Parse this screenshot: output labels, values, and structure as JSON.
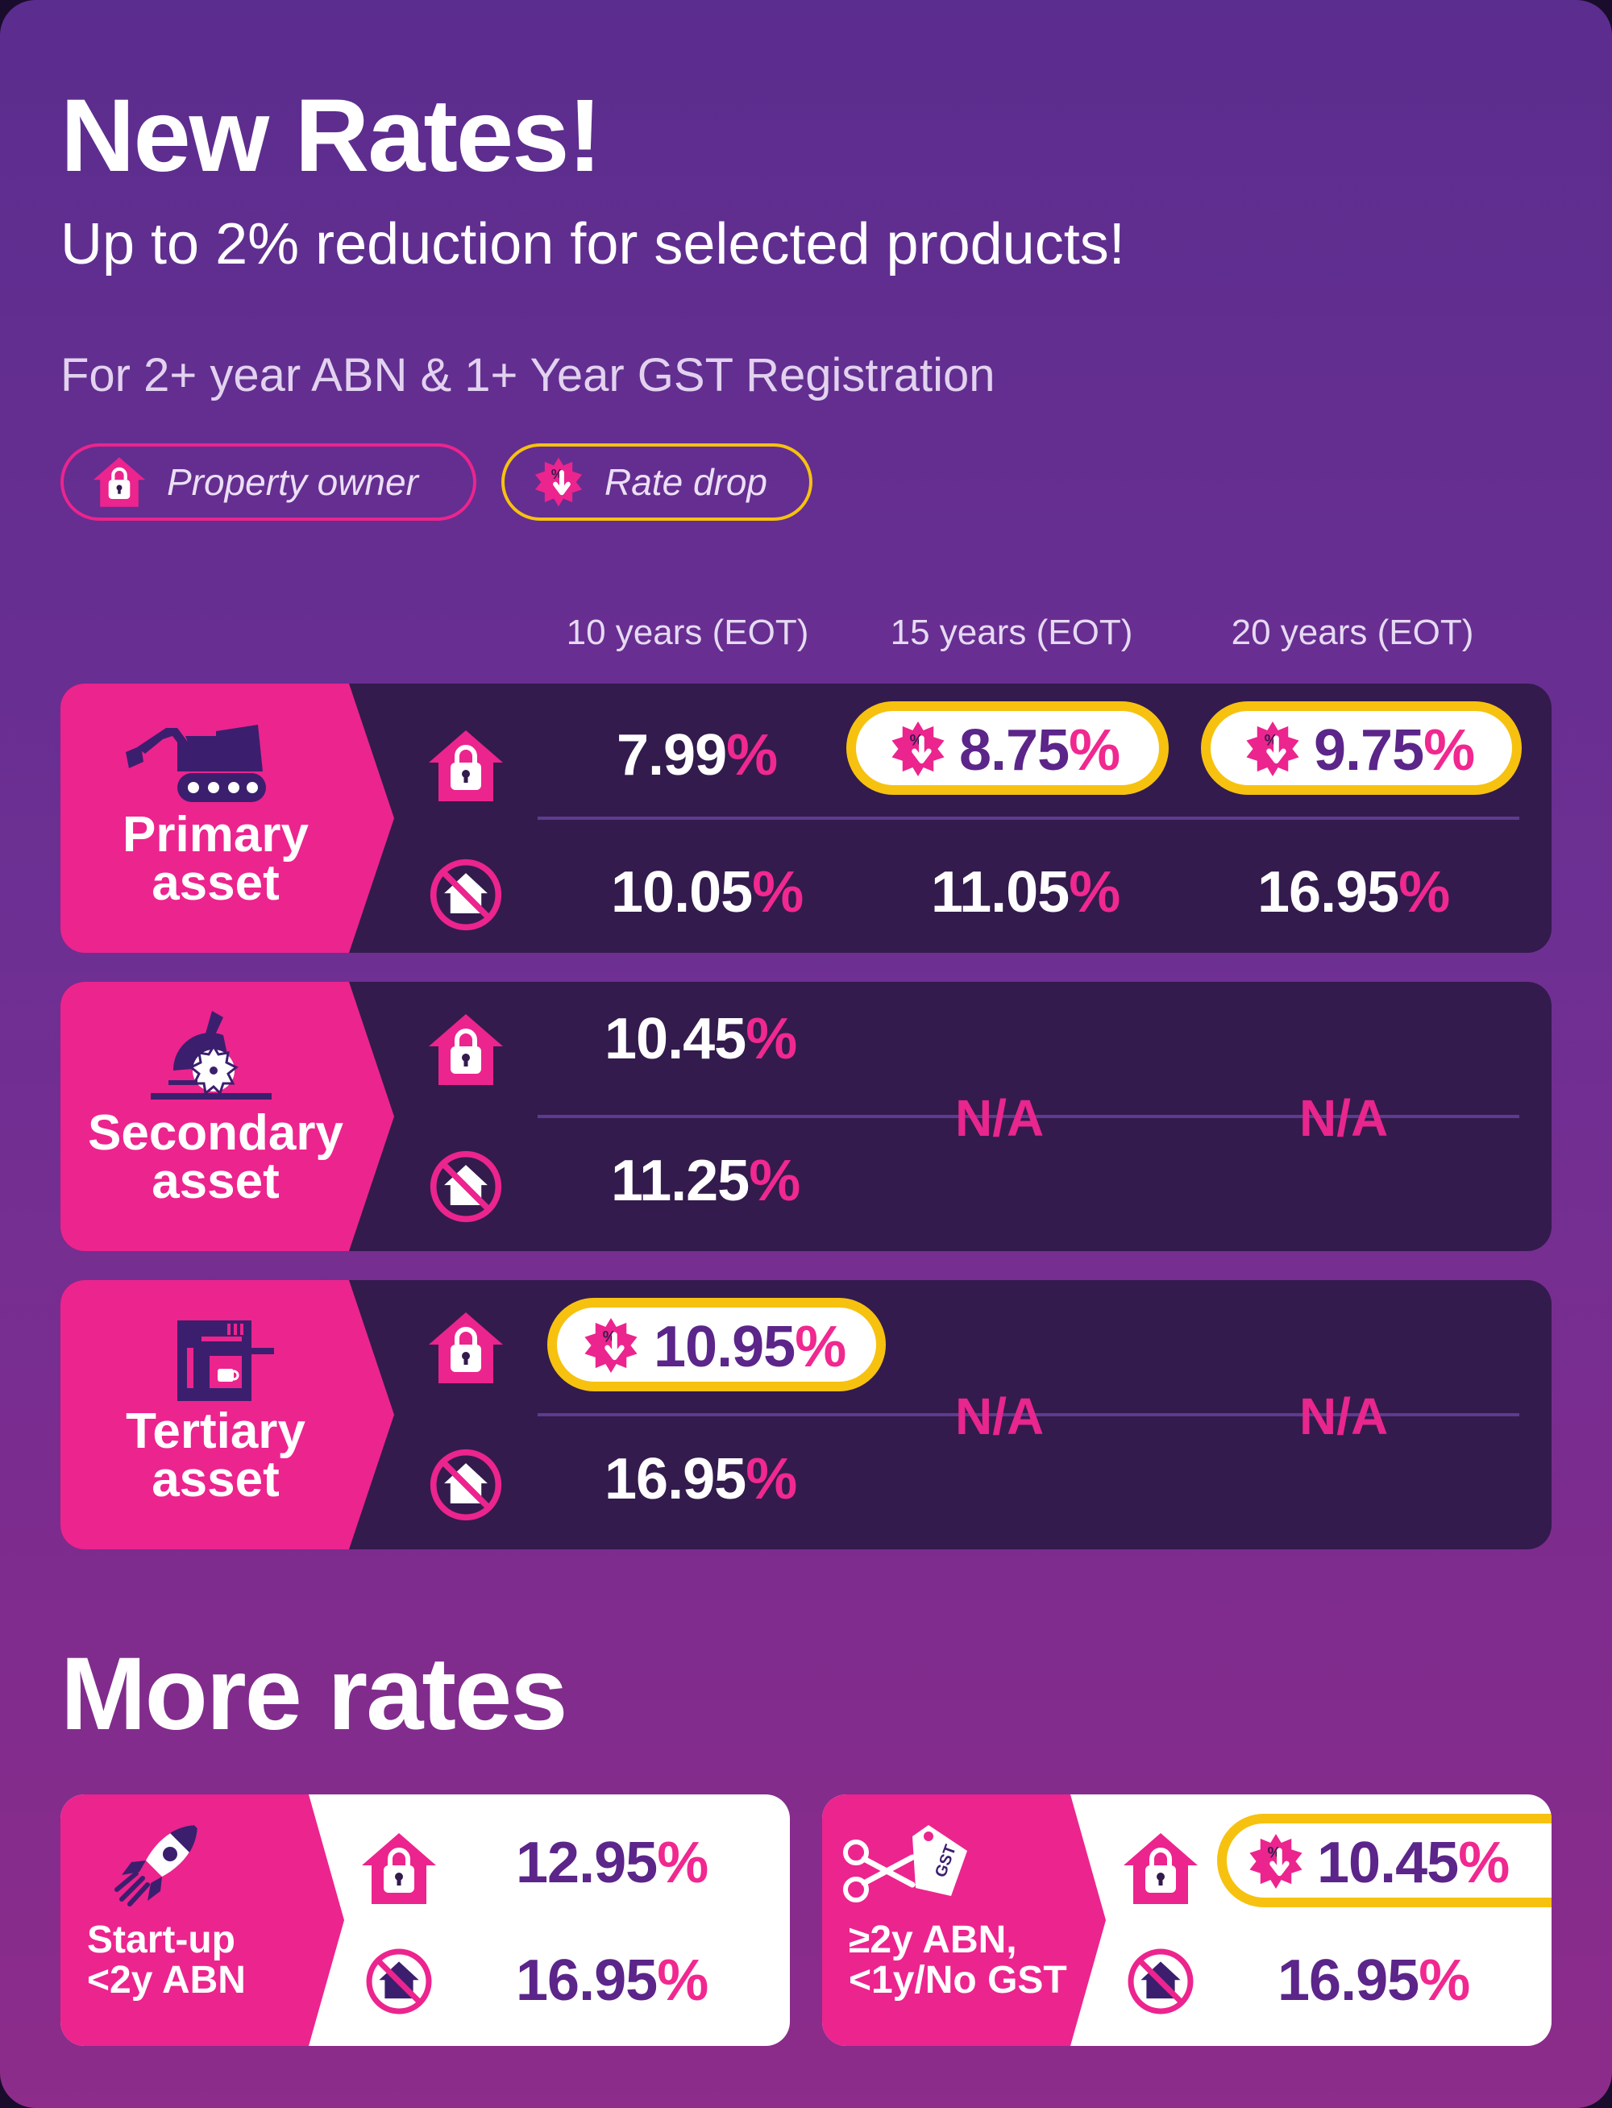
{
  "header": {
    "title": "New Rates!",
    "subtitle": "Up to 2% reduction for selected products!",
    "eligibility": "For 2+ year ABN & 1+ Year GST Registration"
  },
  "legend": {
    "property_owner": "Property owner",
    "rate_drop": "Rate drop"
  },
  "columns": [
    "10 years (EOT)",
    "15 years (EOT)",
    "20 years (EOT)"
  ],
  "assets": [
    {
      "name_line1": "Primary",
      "name_line2": "asset",
      "owner": [
        {
          "num": "7.99",
          "pct": "%"
        },
        {
          "num": "8.75",
          "pct": "%"
        },
        {
          "num": "9.75",
          "pct": "%"
        }
      ],
      "non_owner": [
        {
          "num": "10.05",
          "pct": "%"
        },
        {
          "num": "11.05",
          "pct": "%"
        },
        {
          "num": "16.95",
          "pct": "%"
        }
      ]
    },
    {
      "name_line1": "Secondary",
      "name_line2": "asset",
      "owner": [
        {
          "num": "10.45",
          "pct": "%"
        }
      ],
      "non_owner": [
        {
          "num": "11.25",
          "pct": "%"
        }
      ],
      "na": [
        "N/A",
        "N/A"
      ]
    },
    {
      "name_line1": "Tertiary",
      "name_line2": "asset",
      "owner": [
        {
          "num": "10.95",
          "pct": "%"
        }
      ],
      "non_owner": [
        {
          "num": "16.95",
          "pct": "%"
        }
      ],
      "na": [
        "N/A",
        "N/A"
      ]
    }
  ],
  "more": {
    "title": "More rates",
    "cards": [
      {
        "line1": "Start-up",
        "line2": "<2y ABN",
        "owner": {
          "num": "12.95",
          "pct": "%"
        },
        "non_owner": {
          "num": "16.95",
          "pct": "%"
        }
      },
      {
        "line1": "≥2y ABN,",
        "line2": "<1y/No GST",
        "tag": "GST",
        "owner": {
          "num": "10.45",
          "pct": "%"
        },
        "non_owner": {
          "num": "16.95",
          "pct": "%"
        }
      }
    ]
  },
  "colors": {
    "pink": "#ec248e",
    "yellow": "#f6c20f",
    "panel": "#331b4d",
    "purple_text": "#5b2589"
  },
  "icons": [
    "home-lock-icon",
    "no-home-icon",
    "rate-drop-icon",
    "excavator-icon",
    "saw-icon",
    "coffee-machine-icon",
    "rocket-icon",
    "scissors-tag-icon"
  ]
}
